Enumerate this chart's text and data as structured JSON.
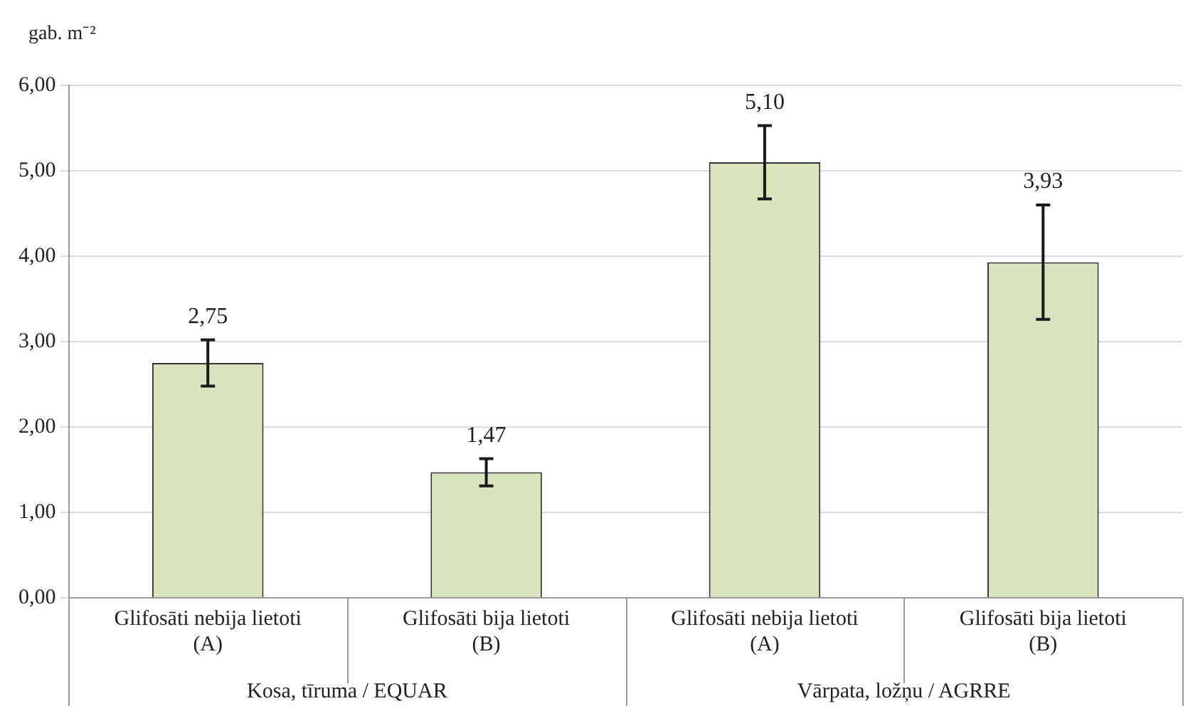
{
  "chart_data": {
    "type": "bar",
    "ylabel": "gab. m⁻²",
    "categories": [
      "Glifosāti nebija lietoti (A)",
      "Glifosāti bija lietoti (B)",
      "Glifosāti nebija lietoti (A)",
      "Glifosāti bija lietoti (B)"
    ],
    "values": [
      2.75,
      1.47,
      5.1,
      3.93
    ],
    "value_labels": [
      "2,75",
      "1,47",
      "5,10",
      "3,93"
    ],
    "errors": [
      0.27,
      0.16,
      0.43,
      0.67
    ],
    "color": "#d7e4bd",
    "ylim": [
      0,
      6
    ],
    "yticks": [
      {
        "value": 0,
        "label": "0,00"
      },
      {
        "value": 1,
        "label": "1,00"
      },
      {
        "value": 2,
        "label": "2,00"
      },
      {
        "value": 3,
        "label": "3,00"
      },
      {
        "value": 4,
        "label": "4,00"
      },
      {
        "value": 5,
        "label": "5,00"
      },
      {
        "value": 6,
        "label": "6,00"
      }
    ],
    "grid": "y",
    "annotations": [
      "Kosa, tīruma / EQUAR",
      "Vārpata, ložņu / AGRRE"
    ]
  }
}
